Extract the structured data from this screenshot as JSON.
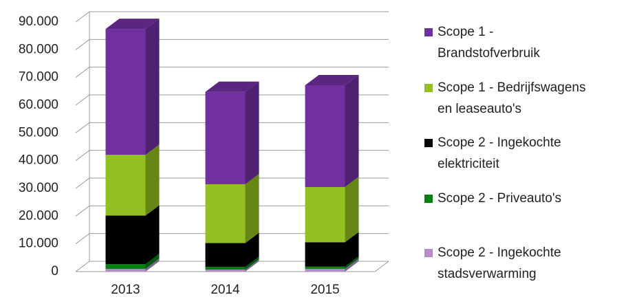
{
  "chart_data": {
    "type": "bar3d_stacked",
    "categories": [
      "2013",
      "2014",
      "2015"
    ],
    "series": [
      {
        "name": [
          "Scope 1 -",
          "Brandstofverbruik"
        ],
        "color": "#7030a0",
        "values": [
          45400,
          33300,
          36700
        ]
      },
      {
        "name": [
          "Scope 1 - Bedrijfswagens",
          "en leaseauto's"
        ],
        "color": "#92c020",
        "values": [
          21900,
          21200,
          19900
        ]
      },
      {
        "name": [
          "Scope 2 - Ingekochte",
          "elektriciteit"
        ],
        "color": "#000000",
        "values": [
          17500,
          8600,
          8800
        ]
      },
      {
        "name": [
          "Scope 2 - Priveauto's"
        ],
        "color": "#00800f",
        "values": [
          1700,
          1000,
          800
        ]
      },
      {
        "name": [
          "Scope 2 - Ingekochte",
          "stadsverwarming"
        ],
        "color": "#b38dc8",
        "values": [
          1000,
          700,
          1000
        ]
      }
    ],
    "ylim": [
      0,
      90000
    ],
    "yticks": [
      0,
      {
        "value": 10000,
        "label": "10.000"
      },
      {
        "value": 20000,
        "label": "20.000"
      },
      {
        "value": 30000,
        "label": "30.000"
      },
      {
        "value": 40000,
        "label": "40.000"
      },
      {
        "value": 50000,
        "label": "50.000"
      },
      {
        "value": 60000,
        "label": "60.000"
      },
      {
        "value": 70000,
        "label": "70.000"
      },
      {
        "value": 80000,
        "label": "80.000"
      },
      {
        "value": 90000,
        "label": "90.000"
      }
    ],
    "grid": true
  }
}
